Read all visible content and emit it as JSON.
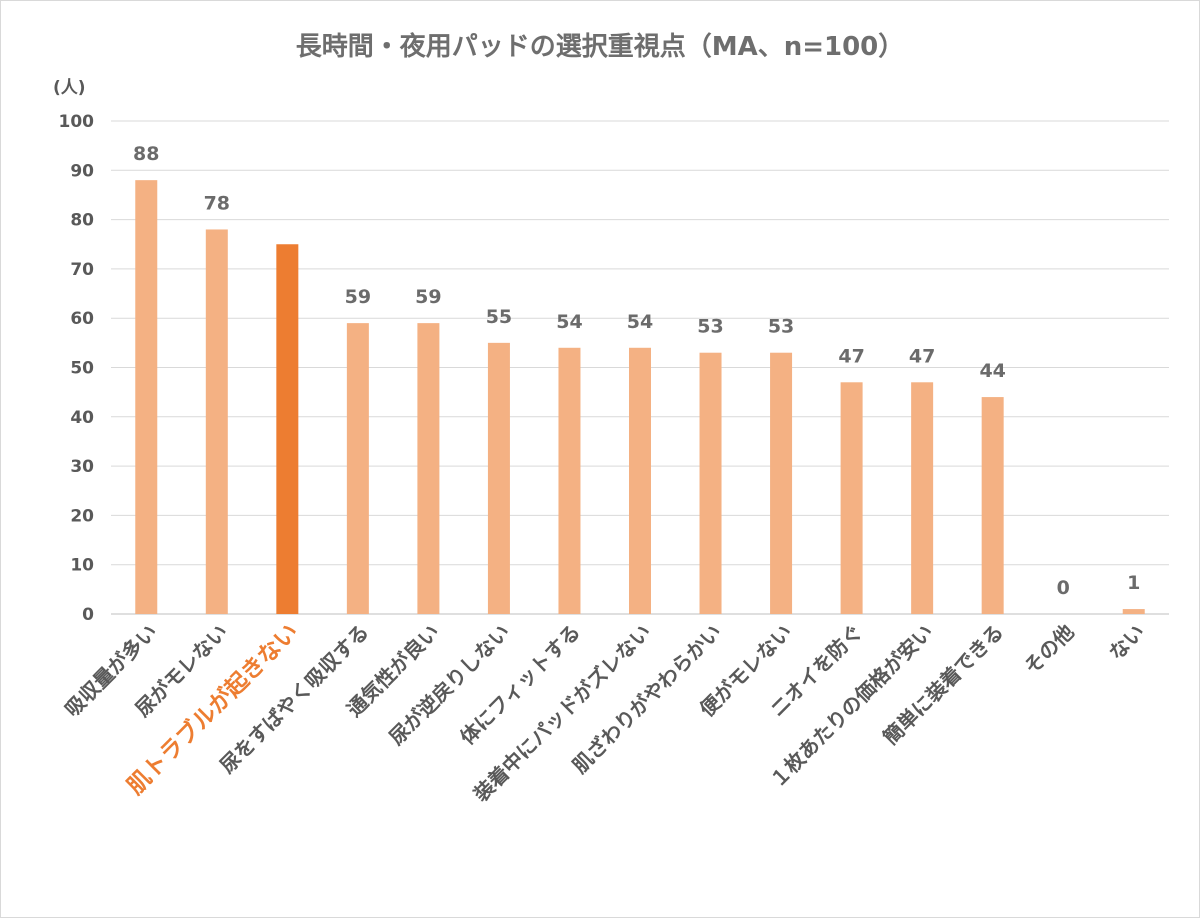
{
  "chart_data": {
    "type": "bar",
    "title": "長時間・夜用パッドの選択重視点（MA、n=100）",
    "ylabel": "(人)",
    "xlabel": "",
    "ylim": [
      0,
      100
    ],
    "yticks": [
      0,
      10,
      20,
      30,
      40,
      50,
      60,
      70,
      80,
      90,
      100
    ],
    "grid": true,
    "legend": "none",
    "categories": [
      "吸収量が多い",
      "尿がモレない",
      "肌トラブルが起きない",
      "尿をすばやく吸収する",
      "通気性が良い",
      "尿が逆戻りしない",
      "体にフィットする",
      "装着中にパッドがズレない",
      "肌ざわりがやわらかい",
      "便がモレない",
      "ニオイを防ぐ",
      "１枚あたりの価格が安い",
      "簡単に装着できる",
      "その他",
      "ない"
    ],
    "values": [
      88,
      78,
      75,
      59,
      59,
      55,
      54,
      54,
      53,
      53,
      47,
      47,
      44,
      0,
      1
    ],
    "data_labels": [
      "88",
      "78",
      "",
      "59",
      "59",
      "55",
      "54",
      "54",
      "53",
      "53",
      "47",
      "47",
      "44",
      "0",
      "1"
    ],
    "highlight_index": 2,
    "colors": {
      "bar": "#f4b183",
      "highlight": "#ed7d31",
      "highlight_text": "#ed7d31"
    }
  }
}
